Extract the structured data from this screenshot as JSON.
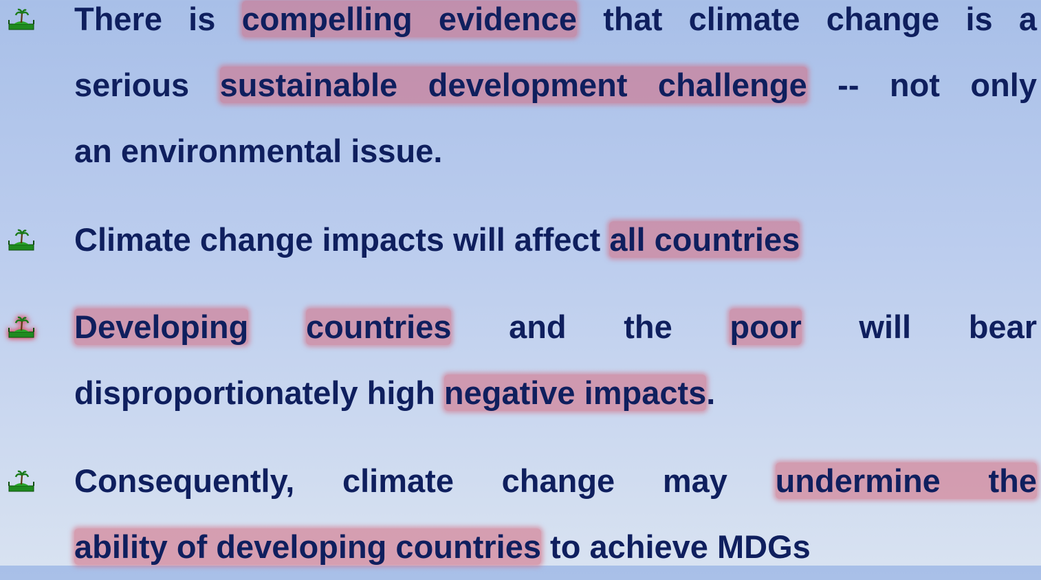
{
  "bullets": [
    {
      "highlight_icon": false,
      "lines": [
        [
          {
            "text": "There is "
          },
          {
            "text": "compelling evidence",
            "highlight": true
          },
          {
            "text": " that climate change is a"
          }
        ],
        [
          {
            "text": "serious "
          },
          {
            "text": "sustainable development challenge",
            "highlight": true
          },
          {
            "text": " -- not only"
          }
        ],
        [
          {
            "text": "an environmental issue."
          }
        ]
      ]
    },
    {
      "highlight_icon": false,
      "lines": [
        [
          {
            "text": "Climate change impacts will affect "
          },
          {
            "text": "all countries",
            "highlight": true
          }
        ]
      ]
    },
    {
      "highlight_icon": true,
      "lines": [
        [
          {
            "text": "Developing",
            "highlight": true
          },
          {
            "text": " "
          },
          {
            "text": "countries",
            "highlight": true
          },
          {
            "text": " and the "
          },
          {
            "text": "poor",
            "highlight": true
          },
          {
            "text": " will bear"
          }
        ],
        [
          {
            "text": "disproportionately high "
          },
          {
            "text": "negative impacts",
            "highlight": true
          },
          {
            "text": "."
          }
        ]
      ]
    },
    {
      "highlight_icon": false,
      "lines": [
        [
          {
            "text": "Consequently, climate change may "
          },
          {
            "text": "undermine the",
            "highlight": true
          }
        ],
        [
          {
            "text": "ability of developing countries",
            "highlight": true
          },
          {
            "text": " to achieve MDGs"
          }
        ]
      ]
    }
  ]
}
